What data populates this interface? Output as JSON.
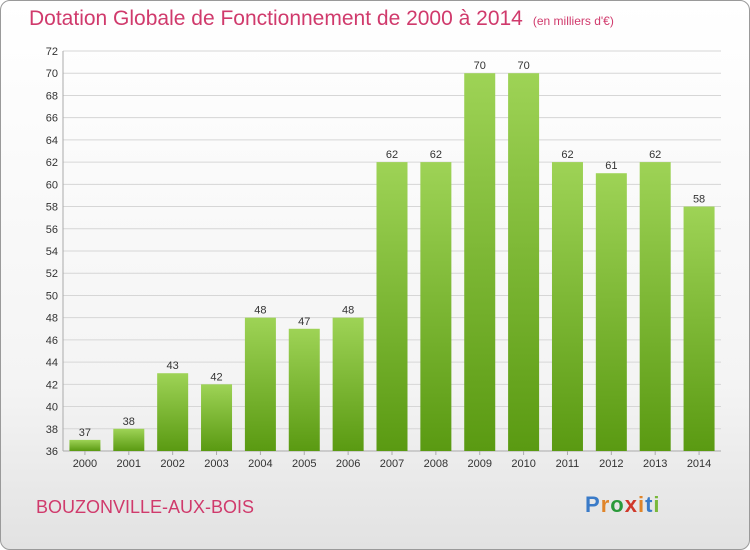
{
  "header": {
    "title": "Dotation Globale de Fonctionnement de 2000 à 2014",
    "unit": "(en milliers d'€)"
  },
  "footer": {
    "commune": "BOUZONVILLE-AUX-BOIS",
    "logo": "Proxiti"
  },
  "colors": {
    "title": "#d03a6c",
    "bar_top": "#9ed356",
    "bar_bottom": "#5a9a12",
    "grid": "#d6d6d6",
    "logo_letters": [
      "#3a7bc8",
      "#e0852a",
      "#2a9a3a",
      "#d0382a",
      "#e0852a",
      "#3a7bc8",
      "#7ab83a"
    ]
  },
  "chart_data": {
    "type": "bar",
    "title": "Dotation Globale de Fonctionnement de 2000 à 2014",
    "subtitle": "(en milliers d'€)",
    "xlabel": "",
    "ylabel": "",
    "categories": [
      "2000",
      "2001",
      "2002",
      "2003",
      "2004",
      "2005",
      "2006",
      "2007",
      "2008",
      "2009",
      "2010",
      "2011",
      "2012",
      "2013",
      "2014"
    ],
    "values": [
      37,
      38,
      43,
      42,
      48,
      47,
      48,
      62,
      62,
      70,
      70,
      62,
      61,
      62,
      58
    ],
    "ylim": [
      36,
      72
    ],
    "yticks": [
      36,
      38,
      40,
      42,
      44,
      46,
      48,
      50,
      52,
      54,
      56,
      58,
      60,
      62,
      64,
      66,
      68,
      70,
      72
    ],
    "grid": true,
    "legend": "none"
  }
}
